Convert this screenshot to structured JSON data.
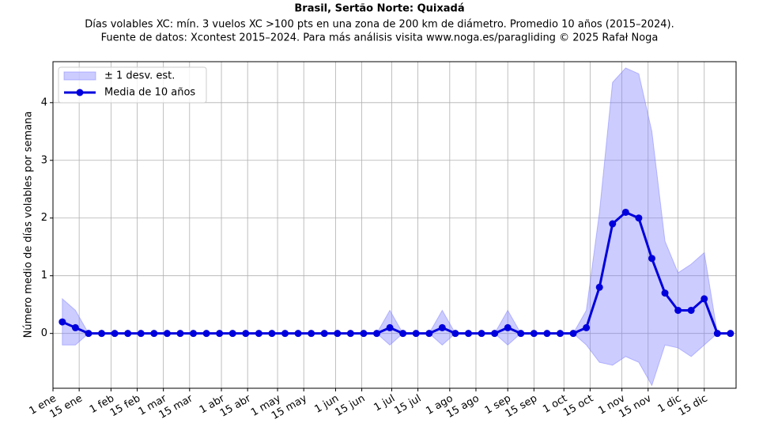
{
  "chart_data": {
    "type": "line",
    "title": "Brasil, Sertão Norte: Quixadá",
    "subtitle": [
      "Días volables XC: mín. 3 vuelos XC >100 pts en una zona de 200 km de diámetro. Promedio 10 años (2015–2024).",
      "Fuente de datos: Xcontest 2015–2024. Para más análisis visita www.noga.es/paragliding © 2025 Rafał Noga"
    ],
    "ylabel": "Número medio de días volables por semana",
    "x": [
      5,
      12,
      19,
      26,
      33,
      40,
      47,
      54,
      61,
      68,
      75,
      82,
      89,
      96,
      103,
      110,
      117,
      124,
      131,
      138,
      145,
      152,
      159,
      166,
      173,
      180,
      187,
      194,
      201,
      208,
      215,
      222,
      229,
      236,
      243,
      250,
      257,
      264,
      271,
      278,
      285,
      292,
      299,
      306,
      313,
      320,
      327,
      334,
      341,
      348,
      355,
      362
    ],
    "series": [
      {
        "name": "Media de 10 años",
        "color": "#0000dd",
        "values": [
          0.2,
          0.1,
          0,
          0,
          0,
          0,
          0,
          0,
          0,
          0,
          0,
          0,
          0,
          0,
          0,
          0,
          0,
          0,
          0,
          0,
          0,
          0,
          0,
          0,
          0,
          0.1,
          0,
          0,
          0,
          0.1,
          0,
          0,
          0,
          0,
          0.1,
          0,
          0,
          0,
          0,
          0,
          0.1,
          0.8,
          1.9,
          2.1,
          2.0,
          1.3,
          0.7,
          0.4,
          0.4,
          0.6,
          0,
          0
        ]
      },
      {
        "name": "± 1 desv. est.",
        "color": "#8080ff",
        "values": [
          0.4,
          0.3,
          0,
          0,
          0,
          0,
          0,
          0,
          0,
          0,
          0,
          0,
          0,
          0,
          0,
          0,
          0,
          0,
          0,
          0,
          0,
          0,
          0,
          0,
          0,
          0.3,
          0,
          0,
          0,
          0.3,
          0,
          0,
          0,
          0,
          0.3,
          0,
          0,
          0,
          0,
          0,
          0.3,
          1.3,
          2.45,
          2.5,
          2.5,
          2.2,
          0.9,
          0.65,
          0.8,
          0.8,
          0,
          0
        ]
      }
    ],
    "xlim": [
      0,
      365
    ],
    "xticks": [
      {
        "value": 0,
        "label": "1 ene"
      },
      {
        "value": 14,
        "label": "15 ene"
      },
      {
        "value": 31,
        "label": "1 feb"
      },
      {
        "value": 45,
        "label": "15 feb"
      },
      {
        "value": 59,
        "label": "1 mar"
      },
      {
        "value": 73,
        "label": "15 mar"
      },
      {
        "value": 90,
        "label": "1 abr"
      },
      {
        "value": 104,
        "label": "15 abr"
      },
      {
        "value": 120,
        "label": "1 may"
      },
      {
        "value": 134,
        "label": "15 may"
      },
      {
        "value": 151,
        "label": "1 jun"
      },
      {
        "value": 165,
        "label": "15 jun"
      },
      {
        "value": 181,
        "label": "1 jul"
      },
      {
        "value": 195,
        "label": "15 jul"
      },
      {
        "value": 212,
        "label": "1 ago"
      },
      {
        "value": 226,
        "label": "15 ago"
      },
      {
        "value": 243,
        "label": "1 sep"
      },
      {
        "value": 257,
        "label": "15 sep"
      },
      {
        "value": 273,
        "label": "1 oct"
      },
      {
        "value": 287,
        "label": "15 oct"
      },
      {
        "value": 304,
        "label": "1 nov"
      },
      {
        "value": 318,
        "label": "15 nov"
      },
      {
        "value": 334,
        "label": "1 dic"
      },
      {
        "value": 348,
        "label": "15 dic"
      }
    ],
    "ylim": [
      -0.95,
      4.71
    ],
    "yticks": [
      0,
      1,
      2,
      3,
      4
    ],
    "grid": true,
    "legend": "upper left"
  }
}
